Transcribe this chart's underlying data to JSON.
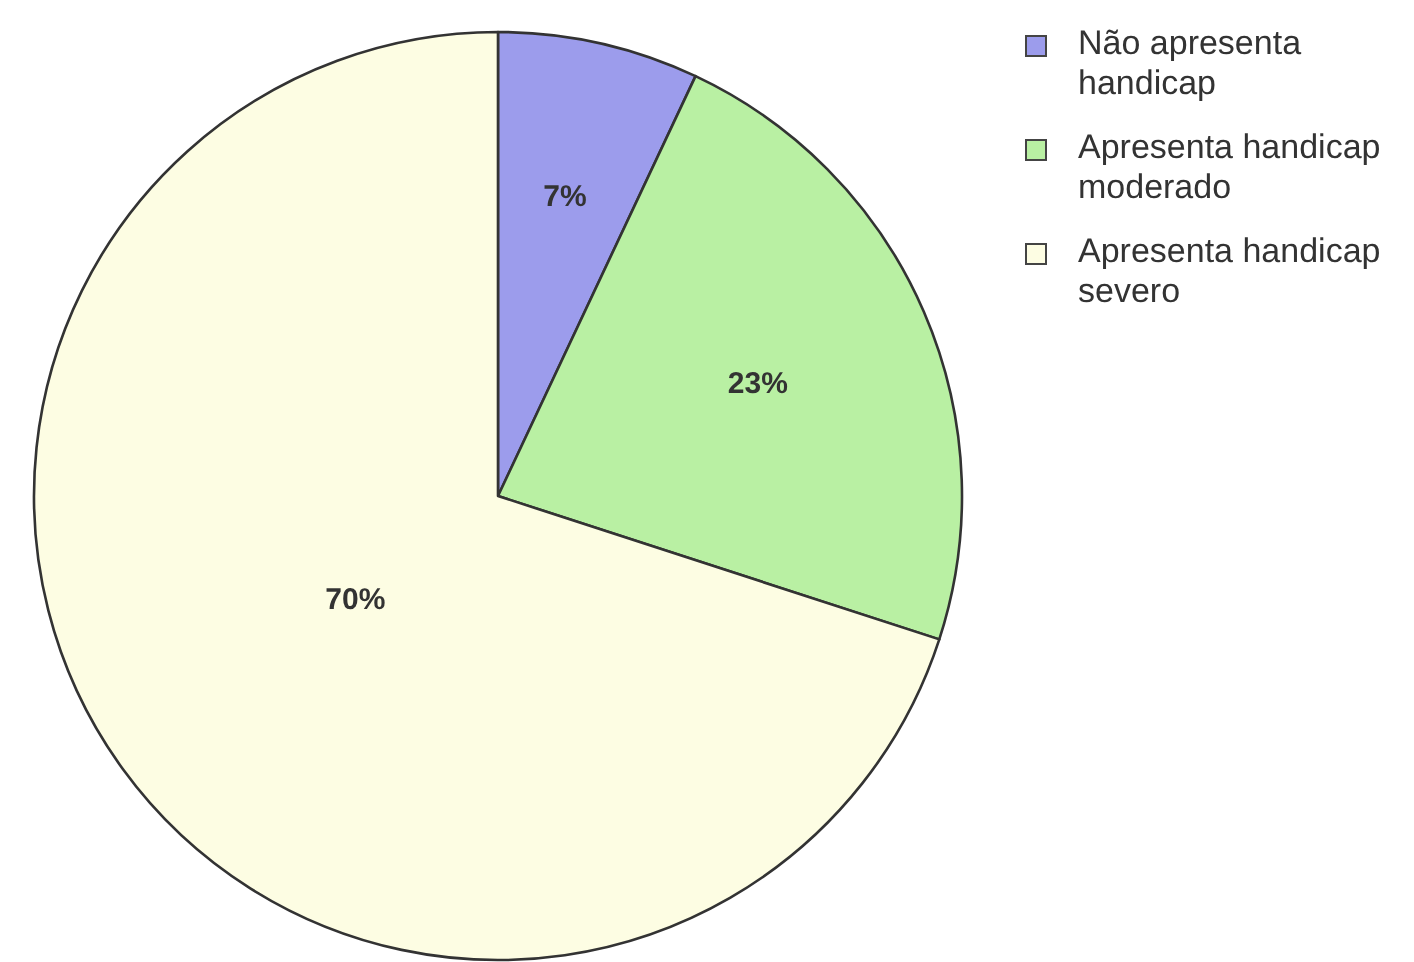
{
  "chart_data": {
    "type": "pie",
    "categories": [
      "Não apresenta handicap",
      "Apresenta handicap moderado",
      "Apresenta handicap severo"
    ],
    "values": [
      7,
      23,
      70
    ],
    "value_labels": [
      "7%",
      "23%",
      "70%"
    ],
    "colors": [
      "#9c9cec",
      "#b9f0a3",
      "#fdfde3"
    ],
    "legend": "top right"
  }
}
